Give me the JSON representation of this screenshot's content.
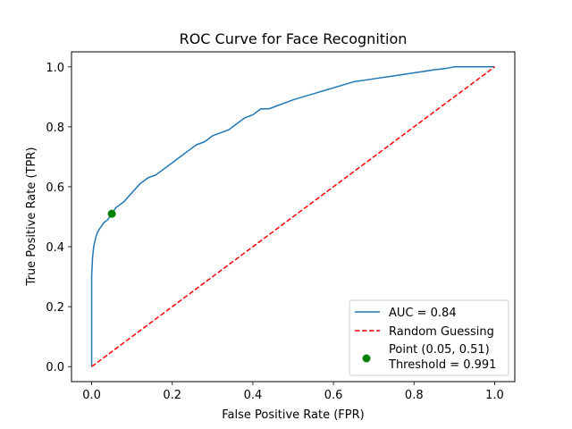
{
  "chart_data": {
    "type": "line",
    "title": "ROC Curve for Face Recognition",
    "xlabel": "False Positive Rate (FPR)",
    "ylabel": "True Positive Rate (TPR)",
    "xlim": [
      -0.05,
      1.05
    ],
    "ylim": [
      -0.05,
      1.05
    ],
    "xticks": [
      "0.0",
      "0.2",
      "0.4",
      "0.6",
      "0.8",
      "1.0"
    ],
    "yticks": [
      "0.0",
      "0.2",
      "0.4",
      "0.6",
      "0.8",
      "1.0"
    ],
    "grid": false,
    "legend_position": "lower-right",
    "series": [
      {
        "name": "AUC = 0.84",
        "color": "#1f77b4",
        "style": "solid",
        "x": [
          0,
          0,
          0.002,
          0.005,
          0.01,
          0.015,
          0.02,
          0.03,
          0.04,
          0.05,
          0.06,
          0.07,
          0.08,
          0.1,
          0.12,
          0.14,
          0.16,
          0.18,
          0.2,
          0.22,
          0.24,
          0.26,
          0.28,
          0.3,
          0.32,
          0.34,
          0.36,
          0.38,
          0.4,
          0.42,
          0.44,
          0.46,
          0.48,
          0.5,
          0.55,
          0.6,
          0.65,
          0.7,
          0.75,
          0.8,
          0.85,
          0.88,
          0.9,
          0.95,
          1.0
        ],
        "y": [
          0,
          0.3,
          0.36,
          0.4,
          0.43,
          0.45,
          0.46,
          0.48,
          0.49,
          0.51,
          0.53,
          0.54,
          0.55,
          0.58,
          0.61,
          0.63,
          0.64,
          0.66,
          0.68,
          0.7,
          0.72,
          0.74,
          0.75,
          0.77,
          0.78,
          0.79,
          0.81,
          0.83,
          0.84,
          0.86,
          0.86,
          0.87,
          0.88,
          0.89,
          0.91,
          0.93,
          0.95,
          0.96,
          0.97,
          0.98,
          0.99,
          0.995,
          1.0,
          1.0,
          1.0
        ]
      },
      {
        "name": "Random Guessing",
        "color": "#ff0000",
        "style": "dashed",
        "x": [
          0,
          1
        ],
        "y": [
          0,
          1
        ]
      }
    ],
    "points": [
      {
        "label_line1": "Point (0.05, 0.51)",
        "label_line2": "Threshold = 0.991",
        "color": "#008000",
        "x": 0.05,
        "y": 0.51
      }
    ]
  }
}
